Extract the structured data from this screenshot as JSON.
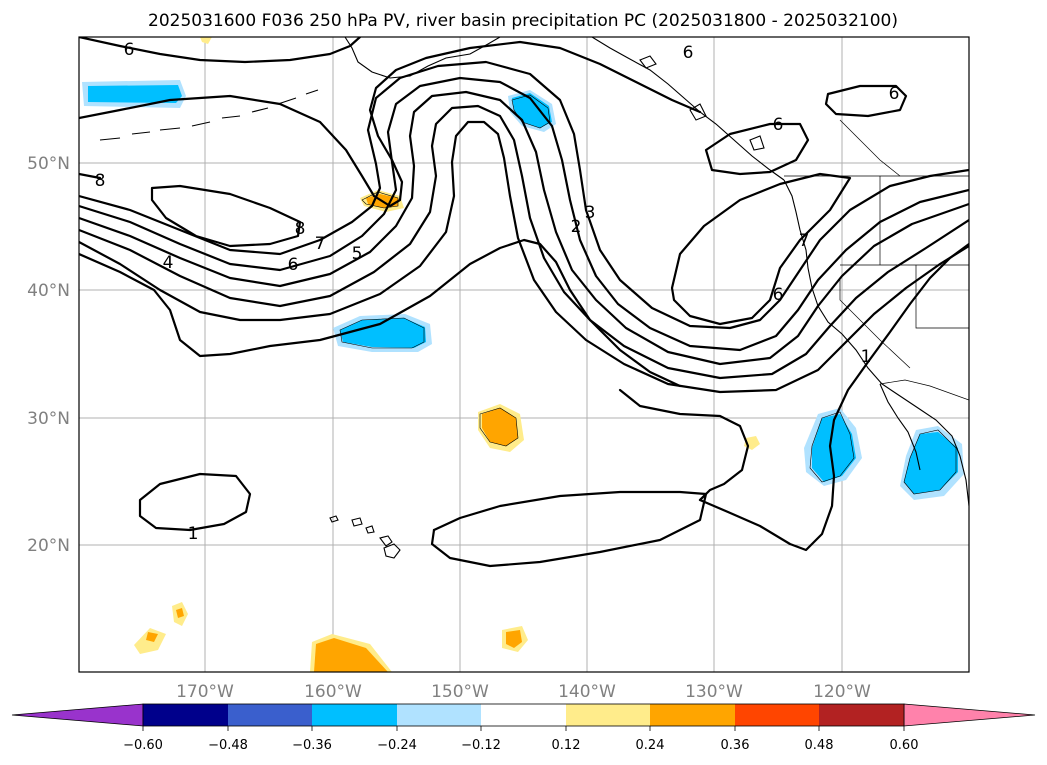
{
  "title": "2025031600 F036 250 hPa PV, river basin precipitation PC (2025031800 - 2025032100)",
  "map": {
    "lon_range": [
      -180,
      -110
    ],
    "lat_range": [
      10,
      60
    ],
    "lon_ticks": [
      "170°W",
      "160°W",
      "150°W",
      "140°W",
      "130°W",
      "120°W"
    ],
    "lat_ticks": [
      "50°N",
      "40°N",
      "30°N",
      "20°N"
    ],
    "grid": true
  },
  "contour_labels": [
    "6",
    "6",
    "6",
    "6",
    "8",
    "8",
    "7",
    "6",
    "5",
    "4",
    "3",
    "2",
    "7",
    "6",
    "1",
    "1"
  ],
  "colorbar": {
    "ticks": [
      "−0.60",
      "−0.48",
      "−0.36",
      "−0.24",
      "−0.12",
      "0.12",
      "0.24",
      "0.36",
      "0.48",
      "0.60"
    ],
    "colors": [
      "#9933cc",
      "#00008b",
      "#3a5fcd",
      "#00bfff",
      "#b0e2ff",
      "#ffffff",
      "#ffec8b",
      "#ffa500",
      "#ff4500",
      "#b22222",
      "#ff82ab"
    ],
    "extend": "both"
  },
  "colors": {
    "neg_strong": "#00bfff",
    "neg_weak": "#b0e2ff",
    "pos_weak": "#ffec8b",
    "pos_strong": "#ffa500"
  }
}
